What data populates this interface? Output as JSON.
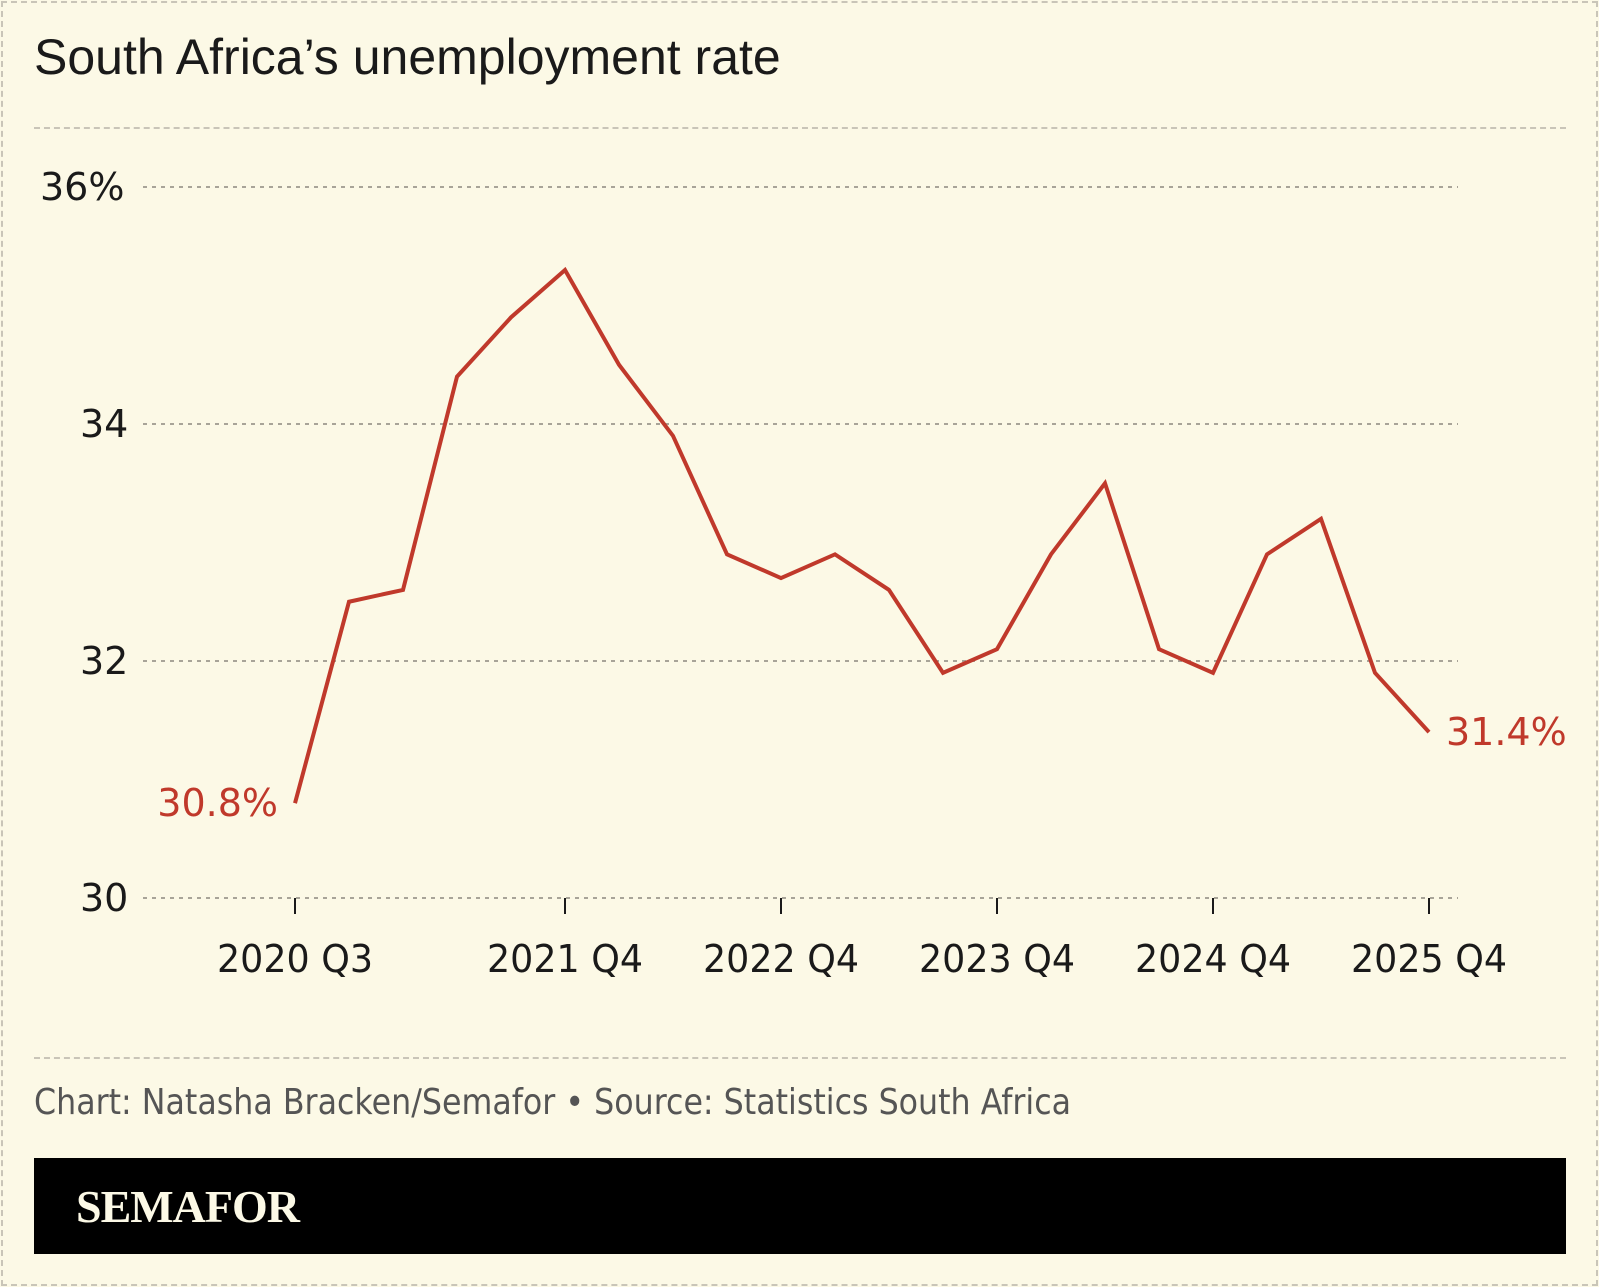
{
  "title": "South Africa’s unemployment rate",
  "source": "Chart: Natasha Bracken/Semafor • Source: Statistics South Africa",
  "brand": "SEMAFOR",
  "colors": {
    "line": "#c0392b",
    "background": "#fcf9e6",
    "brand_bar": "#000000"
  },
  "chart_data": {
    "type": "line",
    "title": "South Africa’s unemployment rate",
    "x": [
      "2020 Q3",
      "2020 Q4",
      "2021 Q1",
      "2021 Q2",
      "2021 Q3",
      "2021 Q4",
      "2022 Q1",
      "2022 Q2",
      "2022 Q3",
      "2022 Q4",
      "2023 Q1",
      "2023 Q2",
      "2023 Q3",
      "2023 Q4",
      "2024 Q1",
      "2024 Q2",
      "2024 Q3",
      "2024 Q4",
      "2025 Q1",
      "2025 Q2",
      "2025 Q3",
      "2025 Q4"
    ],
    "values": [
      30.8,
      32.5,
      32.6,
      34.4,
      34.9,
      35.3,
      34.5,
      33.9,
      32.9,
      32.7,
      32.9,
      32.6,
      31.9,
      32.1,
      32.9,
      33.5,
      32.1,
      31.9,
      32.9,
      33.2,
      31.9,
      31.4
    ],
    "ylim": [
      30,
      36
    ],
    "yticks": [
      {
        "value": 30,
        "label": "30"
      },
      {
        "value": 32,
        "label": "32"
      },
      {
        "value": 34,
        "label": "34"
      },
      {
        "value": 36,
        "label": "36%"
      }
    ],
    "xticks": [
      "2020 Q3",
      "2021 Q4",
      "2022 Q4",
      "2023 Q4",
      "2024 Q4",
      "2025 Q4"
    ],
    "annotations": [
      {
        "x": "2020 Q3",
        "label": "30.8%"
      },
      {
        "x": "2025 Q4",
        "label": "31.4%"
      }
    ],
    "grid": true
  }
}
